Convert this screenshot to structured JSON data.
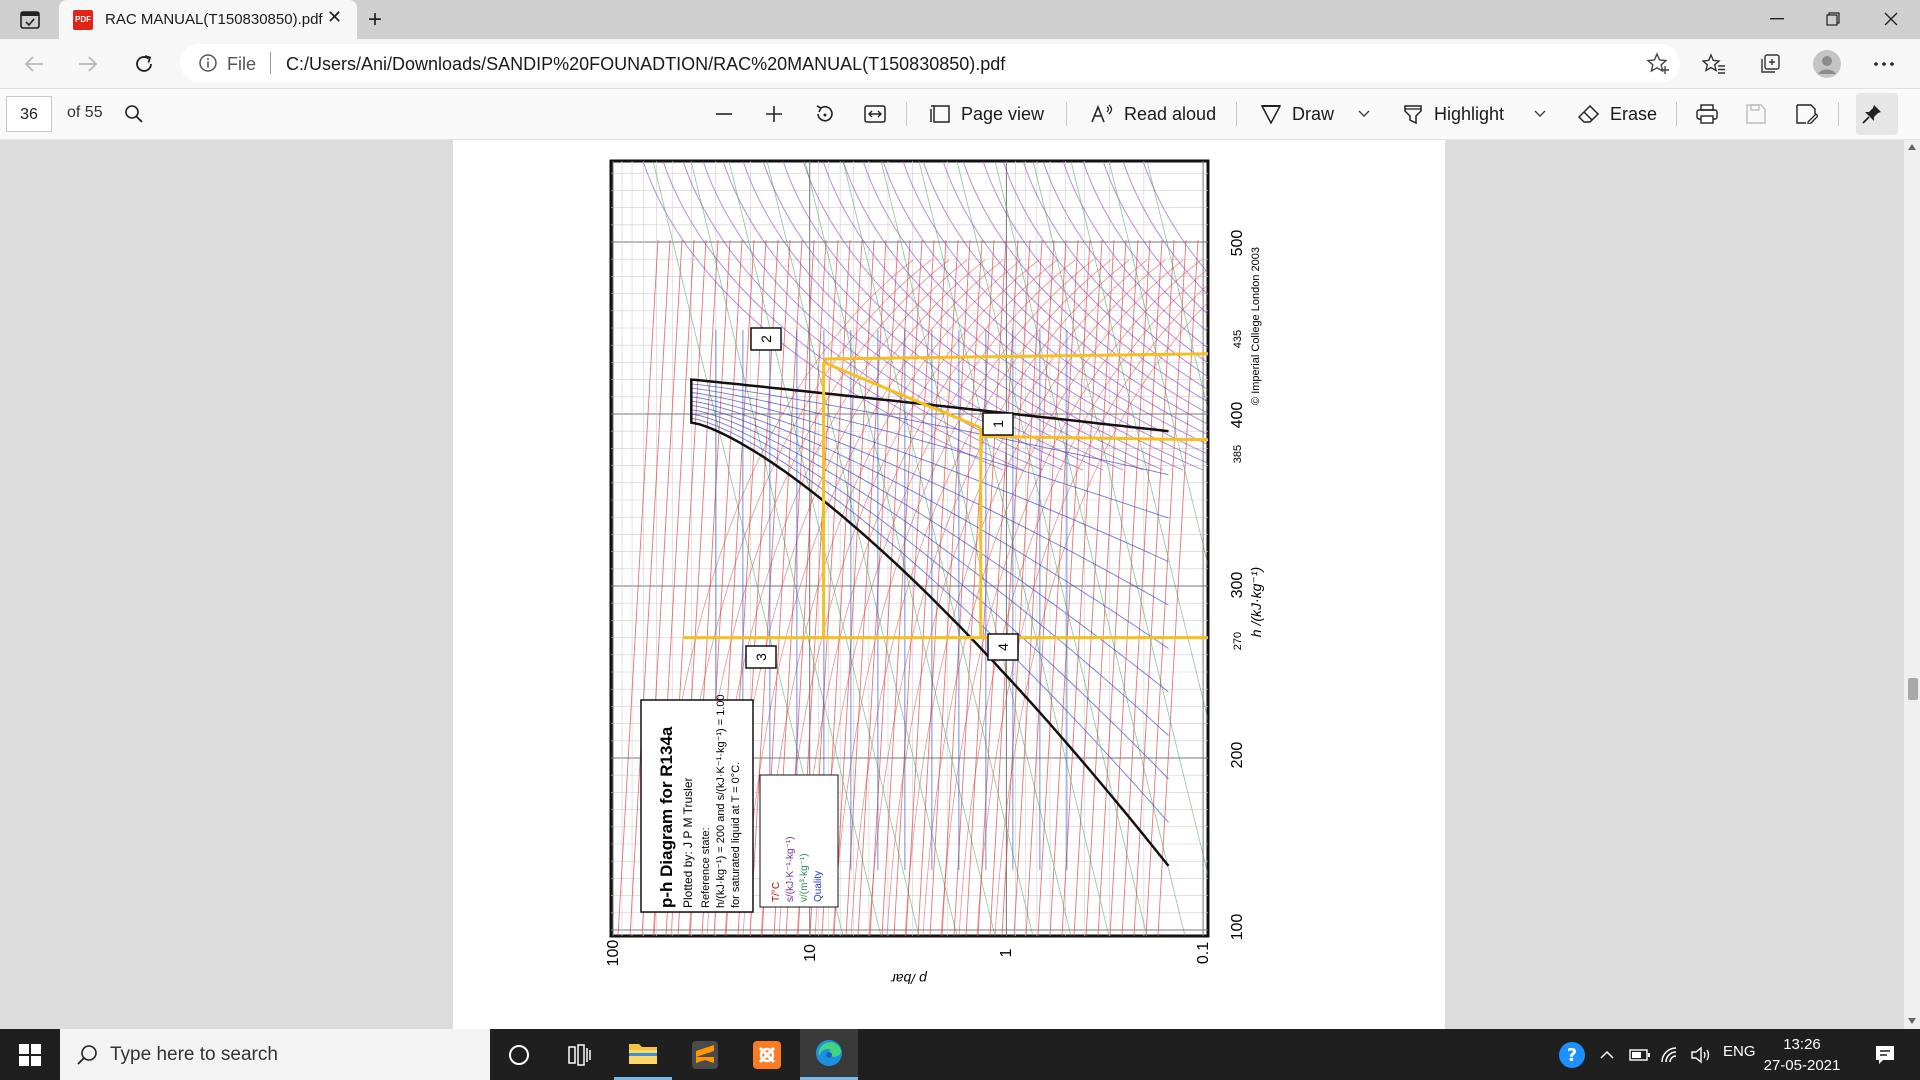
{
  "browser": {
    "tab_title": "RAC MANUAL(T150830850).pdf",
    "tab_icon": "pdf-icon",
    "url_scheme_label": "File",
    "url": "C:/Users/Ani/Downloads/SANDIP%20FOUNADTION/RAC%20MANUAL(T150830850).pdf"
  },
  "pdf_toolbar": {
    "page_number": "36",
    "page_count": "of 55",
    "page_view": "Page view",
    "read_aloud": "Read aloud",
    "draw": "Draw",
    "highlight": "Highlight",
    "erase": "Erase"
  },
  "document": {
    "title": "p-h Diagram for R134a",
    "plotted_by": "Plotted by: J P M Trusler",
    "reference_state": "Reference state:",
    "reference_line_1": "h/(kJ·kg⁻¹) = 200 and s/(kJ·K⁻¹·kg⁻¹) = 1.00",
    "reference_line_2": "for saturated liquid at T = 0°C.",
    "legend": [
      "T/°C",
      "s/(kJ·K⁻¹·kg⁻¹)",
      "v/(m³·kg⁻¹)",
      "Quality"
    ],
    "copyright": "© Imperial College London 2003",
    "x_axis_label": "h /(kJ·kg⁻¹)",
    "y_axis_label": "p /bar",
    "x_ticks": [
      "100",
      "200",
      "300",
      "400",
      "500"
    ],
    "y_ticks": [
      "100",
      "10",
      "1",
      "0.1"
    ],
    "marked_h": [
      "270",
      "385",
      "435"
    ],
    "points": [
      "1",
      "2",
      "3",
      "4"
    ]
  },
  "taskbar": {
    "search_placeholder": "Type here to search",
    "language": "ENG",
    "time": "13:26",
    "date": "27-05-2021"
  }
}
